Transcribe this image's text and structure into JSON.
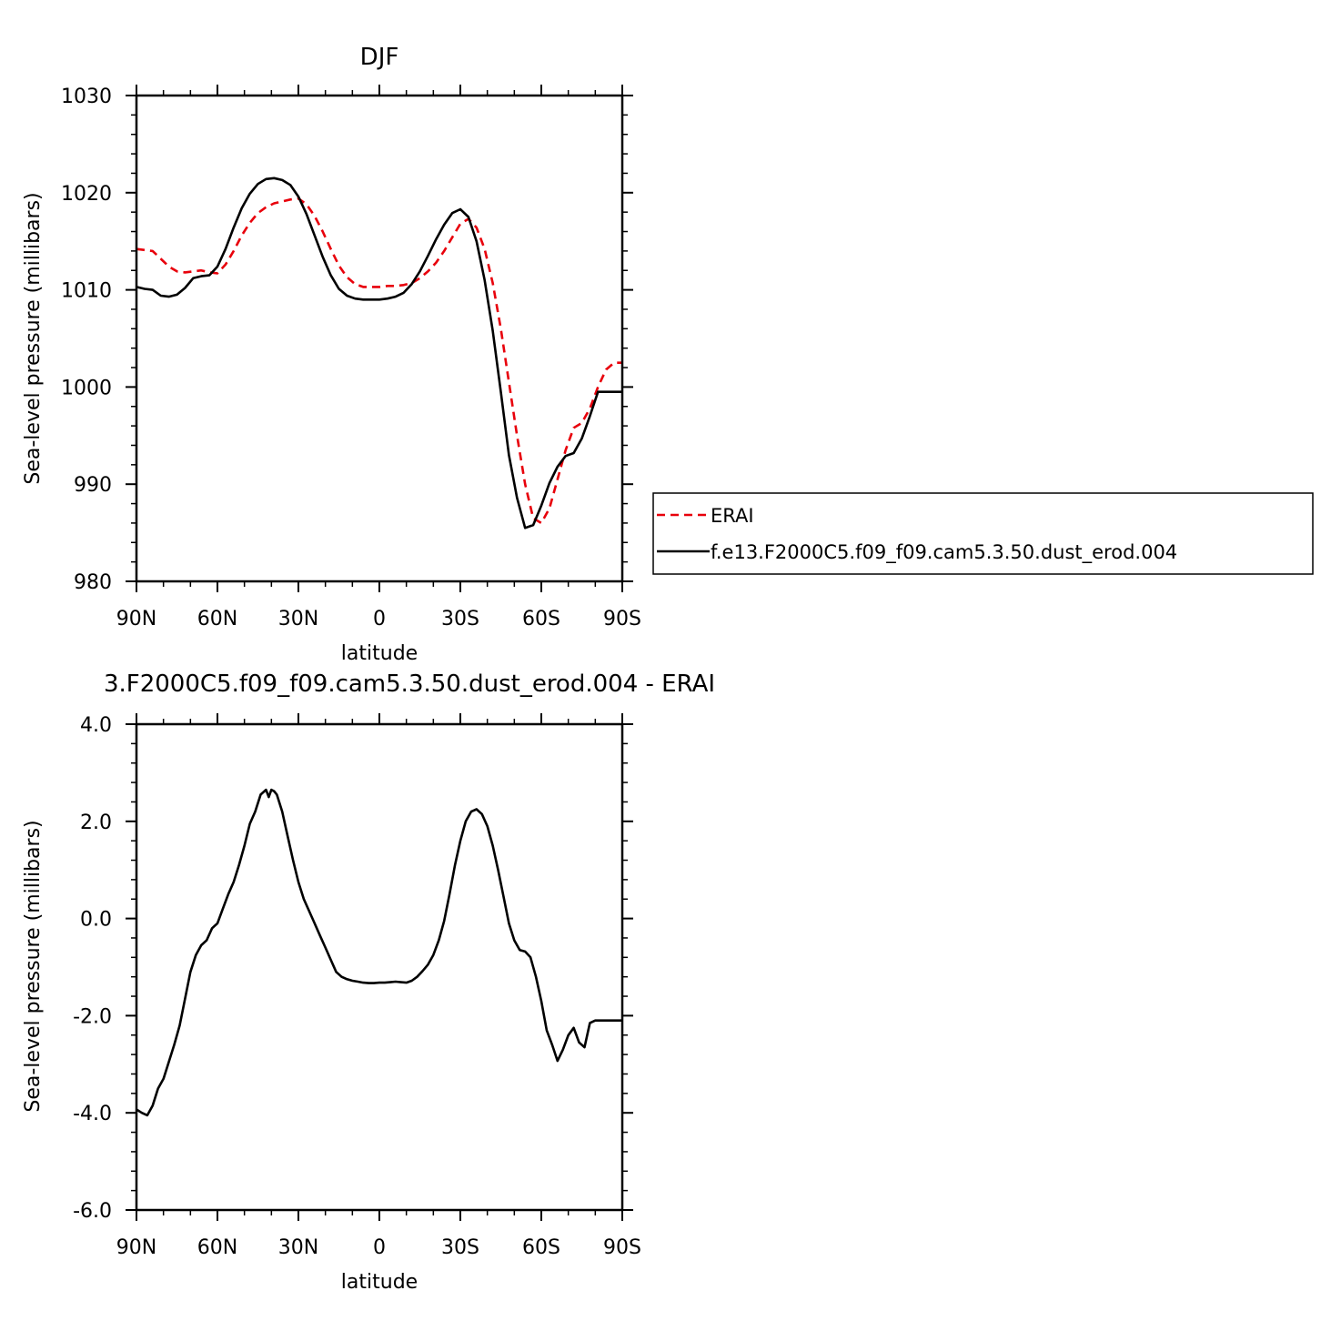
{
  "chart_data": [
    {
      "type": "line",
      "title": "DJF",
      "xlabel": "latitude",
      "ylabel": "Sea-level pressure (millibars)",
      "xlim": [
        -90,
        90
      ],
      "ylim": [
        980,
        1030
      ],
      "x_ticks": [
        {
          "value": -90,
          "label": "90N"
        },
        {
          "value": -60,
          "label": "60N"
        },
        {
          "value": -30,
          "label": "30N"
        },
        {
          "value": 0,
          "label": "0"
        },
        {
          "value": 30,
          "label": "30S"
        },
        {
          "value": 60,
          "label": "60S"
        },
        {
          "value": 90,
          "label": "90S"
        }
      ],
      "y_ticks": [
        {
          "value": 980,
          "label": "980"
        },
        {
          "value": 990,
          "label": "990"
        },
        {
          "value": 1000,
          "label": "1000"
        },
        {
          "value": 1010,
          "label": "1010"
        },
        {
          "value": 1020,
          "label": "1020"
        },
        {
          "value": 1030,
          "label": "1030"
        }
      ],
      "legend_position": "right",
      "series": [
        {
          "name": "ERAI",
          "color": "#e8000b",
          "dash": true,
          "x": [
            -90,
            -84,
            -81,
            -78,
            -75,
            -72,
            -69,
            -66,
            -63,
            -60,
            -57,
            -54,
            -51,
            -48,
            -45,
            -42,
            -39,
            -36,
            -33,
            -30,
            -27,
            -24,
            -21,
            -18,
            -15,
            -12,
            -9,
            -6,
            -3,
            0,
            3,
            6,
            9,
            12,
            15,
            18,
            21,
            24,
            27,
            30,
            33,
            36,
            39,
            42,
            45,
            48,
            51,
            54,
            57,
            60,
            63,
            66,
            69,
            72,
            75,
            78,
            81,
            84,
            87,
            90
          ],
          "y": [
            1014.2,
            1014.0,
            1013.2,
            1012.4,
            1011.9,
            1011.8,
            1011.9,
            1012.0,
            1011.8,
            1011.7,
            1012.6,
            1014.0,
            1015.6,
            1016.9,
            1017.9,
            1018.5,
            1018.9,
            1019.1,
            1019.3,
            1019.4,
            1018.8,
            1017.6,
            1016.0,
            1014.2,
            1012.5,
            1011.3,
            1010.6,
            1010.3,
            1010.3,
            1010.3,
            1010.4,
            1010.4,
            1010.5,
            1010.7,
            1011.2,
            1011.9,
            1012.8,
            1014.0,
            1015.4,
            1016.8,
            1017.3,
            1016.4,
            1014.2,
            1010.7,
            1006.0,
            1000.5,
            995.0,
            990.0,
            986.5,
            986.0,
            987.5,
            990.5,
            993.5,
            995.8,
            996.3,
            997.8,
            1000.0,
            1001.8,
            1002.5,
            1002.5
          ]
        },
        {
          "name": "f.e13.F2000C5.f09_f09.cam5.3.50.dust_erod.004",
          "color": "#000000",
          "dash": false,
          "x": [
            -90,
            -87,
            -84,
            -81,
            -78,
            -75,
            -72,
            -69,
            -66,
            -63,
            -60,
            -57,
            -54,
            -51,
            -48,
            -45,
            -42,
            -39,
            -36,
            -33,
            -30,
            -27,
            -24,
            -21,
            -18,
            -15,
            -12,
            -9,
            -6,
            -3,
            0,
            3,
            6,
            9,
            12,
            15,
            18,
            21,
            24,
            27,
            30,
            33,
            36,
            39,
            42,
            45,
            48,
            51,
            54,
            57,
            60,
            63,
            66,
            69,
            72,
            75,
            78,
            81,
            84,
            87,
            90
          ],
          "y": [
            1010.3,
            1010.1,
            1010.0,
            1009.4,
            1009.3,
            1009.5,
            1010.2,
            1011.2,
            1011.4,
            1011.5,
            1012.4,
            1014.2,
            1016.4,
            1018.4,
            1019.9,
            1020.9,
            1021.4,
            1021.5,
            1021.3,
            1020.8,
            1019.6,
            1017.8,
            1015.6,
            1013.4,
            1011.5,
            1010.1,
            1009.4,
            1009.1,
            1009.0,
            1009.0,
            1009.0,
            1009.1,
            1009.3,
            1009.7,
            1010.6,
            1011.9,
            1013.5,
            1015.2,
            1016.7,
            1017.9,
            1018.3,
            1017.5,
            1015.0,
            1011.0,
            1005.8,
            999.5,
            993.0,
            988.6,
            985.5,
            985.8,
            987.8,
            990.1,
            991.8,
            992.9,
            993.2,
            994.7,
            997.0,
            999.5,
            999.5,
            999.5,
            999.5
          ]
        }
      ]
    },
    {
      "type": "line",
      "title": "3.F2000C5.f09_f09.cam5.3.50.dust_erod.004 - ERAI",
      "xlabel": "latitude",
      "ylabel": "Sea-level pressure (millibars)",
      "xlim": [
        -90,
        90
      ],
      "ylim": [
        -6.0,
        4.0
      ],
      "x_ticks": [
        {
          "value": -90,
          "label": "90N"
        },
        {
          "value": -60,
          "label": "60N"
        },
        {
          "value": -30,
          "label": "30N"
        },
        {
          "value": 0,
          "label": "0"
        },
        {
          "value": 30,
          "label": "30S"
        },
        {
          "value": 60,
          "label": "60S"
        },
        {
          "value": 90,
          "label": "90S"
        }
      ],
      "y_ticks": [
        {
          "value": -6.0,
          "label": "-6.0"
        },
        {
          "value": -4.0,
          "label": "-4.0"
        },
        {
          "value": -2.0,
          "label": "-2.0"
        },
        {
          "value": 0.0,
          "label": "0.0"
        },
        {
          "value": 2.0,
          "label": "2.0"
        },
        {
          "value": 4.0,
          "label": "4.0"
        }
      ],
      "series": [
        {
          "color": "#000000",
          "dash": false,
          "x": [
            -90,
            -88,
            -86,
            -84,
            -82,
            -80,
            -78,
            -76,
            -74,
            -72,
            -70,
            -68,
            -66,
            -64,
            -62,
            -60,
            -58,
            -56,
            -54,
            -52,
            -50,
            -48,
            -46,
            -44,
            -42,
            -41,
            -40,
            -39,
            -38,
            -36,
            -34,
            -32,
            -30,
            -28,
            -26,
            -24,
            -22,
            -20,
            -18,
            -16,
            -14,
            -12,
            -10,
            -8,
            -6,
            -4,
            -2,
            0,
            2,
            4,
            6,
            8,
            10,
            12,
            14,
            16,
            18,
            20,
            22,
            24,
            26,
            28,
            30,
            32,
            34,
            36,
            38,
            40,
            42,
            44,
            46,
            48,
            50,
            52,
            54,
            56,
            58,
            60,
            62,
            64,
            66,
            68,
            70,
            72,
            74,
            76,
            78,
            80,
            82,
            84,
            86,
            88,
            90
          ],
          "y": [
            -3.93,
            -4.0,
            -4.05,
            -3.85,
            -3.5,
            -3.3,
            -2.95,
            -2.6,
            -2.2,
            -1.65,
            -1.1,
            -0.75,
            -0.55,
            -0.45,
            -0.2,
            -0.1,
            0.2,
            0.5,
            0.75,
            1.1,
            1.5,
            1.95,
            2.2,
            2.55,
            2.65,
            2.5,
            2.65,
            2.62,
            2.55,
            2.2,
            1.7,
            1.2,
            0.75,
            0.4,
            0.15,
            -0.1,
            -0.35,
            -0.6,
            -0.85,
            -1.1,
            -1.2,
            -1.25,
            -1.28,
            -1.3,
            -1.32,
            -1.33,
            -1.33,
            -1.32,
            -1.32,
            -1.31,
            -1.3,
            -1.31,
            -1.32,
            -1.28,
            -1.2,
            -1.08,
            -0.95,
            -0.75,
            -0.45,
            -0.05,
            0.5,
            1.1,
            1.6,
            2.0,
            2.2,
            2.25,
            2.15,
            1.9,
            1.5,
            1.0,
            0.45,
            -0.1,
            -0.45,
            -0.65,
            -0.68,
            -0.8,
            -1.2,
            -1.7,
            -2.3,
            -2.6,
            -2.93,
            -2.7,
            -2.4,
            -2.25,
            -2.55,
            -2.65,
            -2.15,
            -2.1,
            -2.1,
            -2.1,
            -2.1,
            -2.1,
            -2.1
          ]
        }
      ]
    }
  ]
}
